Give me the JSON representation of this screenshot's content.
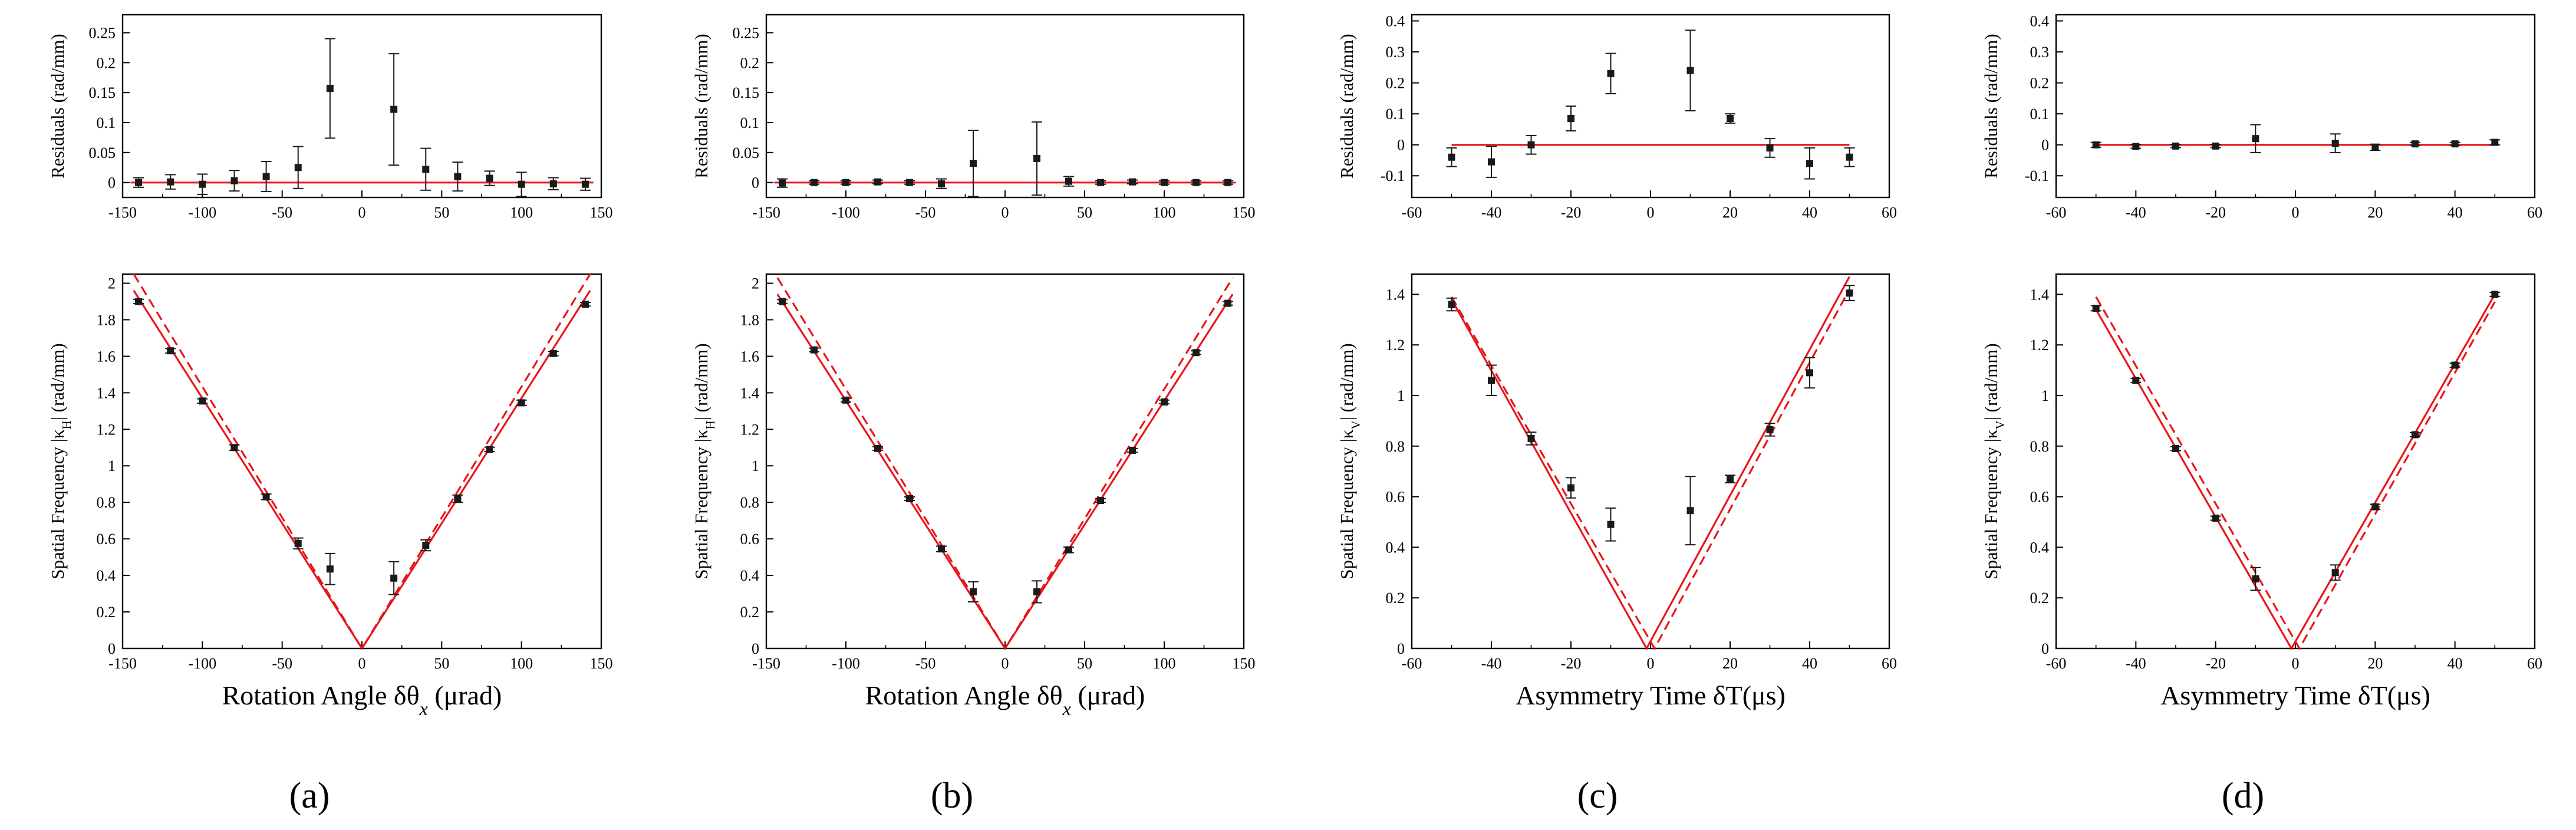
{
  "figure": {
    "panel_labels": [
      "(a)",
      "(b)",
      "(c)",
      "(d)"
    ]
  },
  "colors": {
    "fit": "#e8161b",
    "data": "#1a1a1a",
    "axis": "#000000",
    "background": "#ffffff"
  },
  "chart_data": [
    {
      "panel": "(a)",
      "kind": "residuals",
      "type": "scatter",
      "xlabel": "",
      "ylabel": "Residuals (rad/mm)",
      "xlim": [
        -150,
        150
      ],
      "ylim": [
        -0.025,
        0.28
      ],
      "xticks": [
        -150,
        -100,
        -50,
        0,
        50,
        100,
        150
      ],
      "yticks": [
        0,
        0.05,
        0.1,
        0.15,
        0.2,
        0.25
      ],
      "ytick_labels": [
        "0",
        "0.05",
        "0.1",
        "0.15",
        "0.2",
        "0.25"
      ],
      "points": [
        {
          "x": -140,
          "y": 0.0,
          "err": 0.008
        },
        {
          "x": -120,
          "y": 0.001,
          "err": 0.012
        },
        {
          "x": -100,
          "y": -0.003,
          "err": 0.017
        },
        {
          "x": -80,
          "y": 0.003,
          "err": 0.017
        },
        {
          "x": -60,
          "y": 0.01,
          "err": 0.025
        },
        {
          "x": -40,
          "y": 0.025,
          "err": 0.035
        },
        {
          "x": -20,
          "y": 0.157,
          "err": 0.083
        },
        {
          "x": 20,
          "y": 0.122,
          "err": 0.093
        },
        {
          "x": 40,
          "y": 0.022,
          "err": 0.035
        },
        {
          "x": 60,
          "y": 0.01,
          "err": 0.024
        },
        {
          "x": 80,
          "y": 0.007,
          "err": 0.012
        },
        {
          "x": 100,
          "y": -0.003,
          "err": 0.02
        },
        {
          "x": 120,
          "y": -0.002,
          "err": 0.01
        },
        {
          "x": 140,
          "y": -0.003,
          "err": 0.01
        }
      ],
      "fit_lines": [
        {
          "style": "solid",
          "points": [
            [
              -145,
              0
            ],
            [
              145,
              0
            ]
          ]
        }
      ]
    },
    {
      "panel": "(a)",
      "kind": "main",
      "type": "scatter",
      "xlabel": "Rotation Angle δθ",
      "xlabel_sub": "x",
      "xlabel_unit": " (μrad)",
      "ylabel": "Spatial Frequency |κ",
      "ylabel_sub": "H",
      "ylabel_end": "| (rad/mm)",
      "xlim": [
        -150,
        150
      ],
      "ylim": [
        0,
        2.05
      ],
      "xticks": [
        -150,
        -100,
        -50,
        0,
        50,
        100,
        150
      ],
      "yticks": [
        0,
        0.2,
        0.4,
        0.6,
        0.8,
        1,
        1.2,
        1.4,
        1.6,
        1.8,
        2
      ],
      "ytick_labels": [
        "0",
        "0.2",
        "0.4",
        "0.6",
        "0.8",
        "1",
        "1.2",
        "1.4",
        "1.6",
        "1.8",
        "2"
      ],
      "points": [
        {
          "x": -140,
          "y": 1.9,
          "err": 0.012
        },
        {
          "x": -120,
          "y": 1.63,
          "err": 0.012
        },
        {
          "x": -100,
          "y": 1.355,
          "err": 0.012
        },
        {
          "x": -80,
          "y": 1.1,
          "err": 0.015
        },
        {
          "x": -60,
          "y": 0.83,
          "err": 0.015
        },
        {
          "x": -40,
          "y": 0.575,
          "err": 0.03
        },
        {
          "x": -20,
          "y": 0.435,
          "err": 0.085
        },
        {
          "x": 20,
          "y": 0.385,
          "err": 0.09
        },
        {
          "x": 40,
          "y": 0.565,
          "err": 0.03
        },
        {
          "x": 60,
          "y": 0.82,
          "err": 0.02
        },
        {
          "x": 80,
          "y": 1.09,
          "err": 0.012
        },
        {
          "x": 100,
          "y": 1.345,
          "err": 0.015
        },
        {
          "x": 120,
          "y": 1.615,
          "err": 0.012
        },
        {
          "x": 140,
          "y": 1.885,
          "err": 0.01
        }
      ],
      "fit_lines": [
        {
          "style": "solid",
          "points": [
            [
              -143,
              1.96
            ],
            [
              0,
              0
            ],
            [
              143,
              1.96
            ]
          ]
        },
        {
          "style": "dashed",
          "points": [
            [
              -143,
              2.05
            ],
            [
              0,
              0
            ],
            [
              143,
              2.05
            ]
          ]
        }
      ]
    },
    {
      "panel": "(b)",
      "kind": "residuals",
      "type": "scatter",
      "xlabel": "",
      "ylabel": "Residuals (rad/mm)",
      "xlim": [
        -150,
        150
      ],
      "ylim": [
        -0.025,
        0.28
      ],
      "xticks": [
        -150,
        -100,
        -50,
        0,
        50,
        100,
        150
      ],
      "yticks": [
        0,
        0.05,
        0.1,
        0.15,
        0.2,
        0.25
      ],
      "ytick_labels": [
        "0",
        "0.05",
        "0.1",
        "0.15",
        "0.2",
        "0.25"
      ],
      "points": [
        {
          "x": -140,
          "y": -0.001,
          "err": 0.007
        },
        {
          "x": -120,
          "y": 0.0,
          "err": 0.003
        },
        {
          "x": -100,
          "y": 0.0,
          "err": 0.003
        },
        {
          "x": -80,
          "y": 0.001,
          "err": 0.003
        },
        {
          "x": -60,
          "y": 0.0,
          "err": 0.003
        },
        {
          "x": -40,
          "y": -0.002,
          "err": 0.008
        },
        {
          "x": -20,
          "y": 0.032,
          "err": 0.055
        },
        {
          "x": 20,
          "y": 0.04,
          "err": 0.061
        },
        {
          "x": 40,
          "y": 0.002,
          "err": 0.008
        },
        {
          "x": 60,
          "y": 0.0,
          "err": 0.003
        },
        {
          "x": 80,
          "y": 0.001,
          "err": 0.003
        },
        {
          "x": 100,
          "y": 0.0,
          "err": 0.003
        },
        {
          "x": 120,
          "y": 0.0,
          "err": 0.003
        },
        {
          "x": 140,
          "y": 0.0,
          "err": 0.003
        }
      ],
      "fit_lines": [
        {
          "style": "solid",
          "points": [
            [
              -145,
              0
            ],
            [
              145,
              0
            ]
          ]
        }
      ]
    },
    {
      "panel": "(b)",
      "kind": "main",
      "type": "scatter",
      "xlabel": "Rotation Angle δθ",
      "xlabel_sub": "x",
      "xlabel_unit": " (μrad)",
      "ylabel": "Spatial Frequency |κ",
      "ylabel_sub": "H",
      "ylabel_end": "| (rad/mm)",
      "xlim": [
        -150,
        150
      ],
      "ylim": [
        0,
        2.05
      ],
      "xticks": [
        -150,
        -100,
        -50,
        0,
        50,
        100,
        150
      ],
      "yticks": [
        0,
        0.2,
        0.4,
        0.6,
        0.8,
        1,
        1.2,
        1.4,
        1.6,
        1.8,
        2
      ],
      "ytick_labels": [
        "0",
        "0.2",
        "0.4",
        "0.6",
        "0.8",
        "1",
        "1.2",
        "1.4",
        "1.6",
        "1.8",
        "2"
      ],
      "points": [
        {
          "x": -140,
          "y": 1.9,
          "err": 0.01
        },
        {
          "x": -120,
          "y": 1.635,
          "err": 0.01
        },
        {
          "x": -100,
          "y": 1.36,
          "err": 0.01
        },
        {
          "x": -80,
          "y": 1.095,
          "err": 0.01
        },
        {
          "x": -60,
          "y": 0.82,
          "err": 0.01
        },
        {
          "x": -40,
          "y": 0.545,
          "err": 0.015
        },
        {
          "x": -20,
          "y": 0.31,
          "err": 0.055
        },
        {
          "x": 20,
          "y": 0.31,
          "err": 0.06
        },
        {
          "x": 40,
          "y": 0.54,
          "err": 0.015
        },
        {
          "x": 60,
          "y": 0.81,
          "err": 0.01
        },
        {
          "x": 80,
          "y": 1.085,
          "err": 0.01
        },
        {
          "x": 100,
          "y": 1.35,
          "err": 0.01
        },
        {
          "x": 120,
          "y": 1.62,
          "err": 0.01
        },
        {
          "x": 140,
          "y": 1.89,
          "err": 0.01
        }
      ],
      "fit_lines": [
        {
          "style": "solid",
          "points": [
            [
              -143,
              1.94
            ],
            [
              0,
              0
            ],
            [
              143,
              1.94
            ]
          ]
        },
        {
          "style": "dashed",
          "points": [
            [
              -143,
              2.03
            ],
            [
              0,
              0
            ],
            [
              143,
              2.03
            ]
          ]
        }
      ]
    },
    {
      "panel": "(c)",
      "kind": "residuals",
      "type": "scatter",
      "xlabel": "",
      "ylabel": "Residuals (rad/mm)",
      "xlim": [
        -60,
        60
      ],
      "ylim": [
        -0.17,
        0.42
      ],
      "xticks": [
        -60,
        -40,
        -20,
        0,
        20,
        40,
        60
      ],
      "yticks": [
        -0.1,
        0,
        0.1,
        0.2,
        0.3,
        0.4
      ],
      "ytick_labels": [
        "-0.1",
        "0",
        "0.1",
        "0.2",
        "0.3",
        "0.4"
      ],
      "points": [
        {
          "x": -50,
          "y": -0.04,
          "err": 0.03
        },
        {
          "x": -40,
          "y": -0.055,
          "err": 0.05
        },
        {
          "x": -30,
          "y": 0.0,
          "err": 0.03
        },
        {
          "x": -20,
          "y": 0.085,
          "err": 0.04
        },
        {
          "x": -10,
          "y": 0.23,
          "err": 0.065
        },
        {
          "x": 10,
          "y": 0.24,
          "err": 0.13
        },
        {
          "x": 20,
          "y": 0.085,
          "err": 0.015
        },
        {
          "x": 30,
          "y": -0.01,
          "err": 0.03
        },
        {
          "x": 40,
          "y": -0.06,
          "err": 0.05
        },
        {
          "x": 50,
          "y": -0.04,
          "err": 0.03
        }
      ],
      "fit_lines": [
        {
          "style": "solid",
          "points": [
            [
              -50,
              0
            ],
            [
              50,
              0
            ]
          ]
        }
      ]
    },
    {
      "panel": "(c)",
      "kind": "main",
      "type": "scatter",
      "xlabel": "Asymmetry Time δT",
      "xlabel_sub": "",
      "xlabel_unit": "(μs)",
      "ylabel": "Spatial Frequency |κ",
      "ylabel_sub": "V",
      "ylabel_end": "| (rad/mm)",
      "xlim": [
        -60,
        60
      ],
      "ylim": [
        0,
        1.48
      ],
      "xticks": [
        -60,
        -40,
        -20,
        0,
        20,
        40,
        60
      ],
      "yticks": [
        0,
        0.2,
        0.4,
        0.6,
        0.8,
        1,
        1.2,
        1.4
      ],
      "ytick_labels": [
        "0",
        "0.2",
        "0.4",
        "0.6",
        "0.8",
        "1",
        "1.2",
        "1.4"
      ],
      "points": [
        {
          "x": -50,
          "y": 1.36,
          "err": 0.025
        },
        {
          "x": -40,
          "y": 1.06,
          "err": 0.06
        },
        {
          "x": -30,
          "y": 0.83,
          "err": 0.025
        },
        {
          "x": -20,
          "y": 0.635,
          "err": 0.04
        },
        {
          "x": -10,
          "y": 0.49,
          "err": 0.065
        },
        {
          "x": 10,
          "y": 0.545,
          "err": 0.135
        },
        {
          "x": 20,
          "y": 0.67,
          "err": 0.015
        },
        {
          "x": 30,
          "y": 0.865,
          "err": 0.025
        },
        {
          "x": 40,
          "y": 1.09,
          "err": 0.06
        },
        {
          "x": 50,
          "y": 1.405,
          "err": 0.03
        }
      ],
      "fit_lines": [
        {
          "style": "solid",
          "points": [
            [
              -50,
              1.38
            ],
            [
              -1,
              0
            ],
            [
              50,
              1.47
            ]
          ]
        },
        {
          "style": "dashed",
          "points": [
            [
              -50,
              1.39
            ],
            [
              1,
              0
            ],
            [
              50,
              1.42
            ]
          ]
        }
      ]
    },
    {
      "panel": "(d)",
      "kind": "residuals",
      "type": "scatter",
      "xlabel": "",
      "ylabel": "Residuals (rad/mm)",
      "xlim": [
        -60,
        60
      ],
      "ylim": [
        -0.17,
        0.42
      ],
      "xticks": [
        -60,
        -40,
        -20,
        0,
        20,
        40,
        60
      ],
      "yticks": [
        -0.1,
        0,
        0.1,
        0.2,
        0.3,
        0.4
      ],
      "ytick_labels": [
        "-0.1",
        "0",
        "0.1",
        "0.2",
        "0.3",
        "0.4"
      ],
      "points": [
        {
          "x": -50,
          "y": 0.0,
          "err": 0.008
        },
        {
          "x": -40,
          "y": -0.005,
          "err": 0.006
        },
        {
          "x": -30,
          "y": -0.004,
          "err": 0.005
        },
        {
          "x": -20,
          "y": -0.004,
          "err": 0.005
        },
        {
          "x": -10,
          "y": 0.02,
          "err": 0.045
        },
        {
          "x": 10,
          "y": 0.005,
          "err": 0.03
        },
        {
          "x": 20,
          "y": -0.008,
          "err": 0.01
        },
        {
          "x": 30,
          "y": 0.003,
          "err": 0.005
        },
        {
          "x": 40,
          "y": 0.003,
          "err": 0.005
        },
        {
          "x": 50,
          "y": 0.008,
          "err": 0.008
        }
      ],
      "fit_lines": [
        {
          "style": "solid",
          "points": [
            [
              -50,
              0
            ],
            [
              50,
              0
            ]
          ]
        }
      ]
    },
    {
      "panel": "(d)",
      "kind": "main",
      "type": "scatter",
      "xlabel": "Asymmetry Time δT",
      "xlabel_sub": "",
      "xlabel_unit": "(μs)",
      "ylabel": "Spatial Frequency |κ",
      "ylabel_sub": "V",
      "ylabel_end": "| (rad/mm)",
      "xlim": [
        -60,
        60
      ],
      "ylim": [
        0,
        1.48
      ],
      "xticks": [
        -60,
        -40,
        -20,
        0,
        20,
        40,
        60
      ],
      "yticks": [
        0,
        0.2,
        0.4,
        0.6,
        0.8,
        1,
        1.2,
        1.4
      ],
      "ytick_labels": [
        "0",
        "0.2",
        "0.4",
        "0.6",
        "0.8",
        "1",
        "1.2",
        "1.4"
      ],
      "points": [
        {
          "x": -50,
          "y": 1.345,
          "err": 0.01
        },
        {
          "x": -40,
          "y": 1.06,
          "err": 0.008
        },
        {
          "x": -30,
          "y": 0.79,
          "err": 0.008
        },
        {
          "x": -20,
          "y": 0.515,
          "err": 0.008
        },
        {
          "x": -10,
          "y": 0.275,
          "err": 0.045
        },
        {
          "x": 10,
          "y": 0.3,
          "err": 0.03
        },
        {
          "x": 20,
          "y": 0.56,
          "err": 0.01
        },
        {
          "x": 30,
          "y": 0.845,
          "err": 0.008
        },
        {
          "x": 40,
          "y": 1.12,
          "err": 0.008
        },
        {
          "x": 50,
          "y": 1.4,
          "err": 0.008
        }
      ],
      "fit_lines": [
        {
          "style": "solid",
          "points": [
            [
              -50,
              1.34
            ],
            [
              -1,
              0
            ],
            [
              50,
              1.4
            ]
          ]
        },
        {
          "style": "dashed",
          "points": [
            [
              -50,
              1.39
            ],
            [
              1,
              0
            ],
            [
              50,
              1.37
            ]
          ]
        }
      ]
    }
  ]
}
